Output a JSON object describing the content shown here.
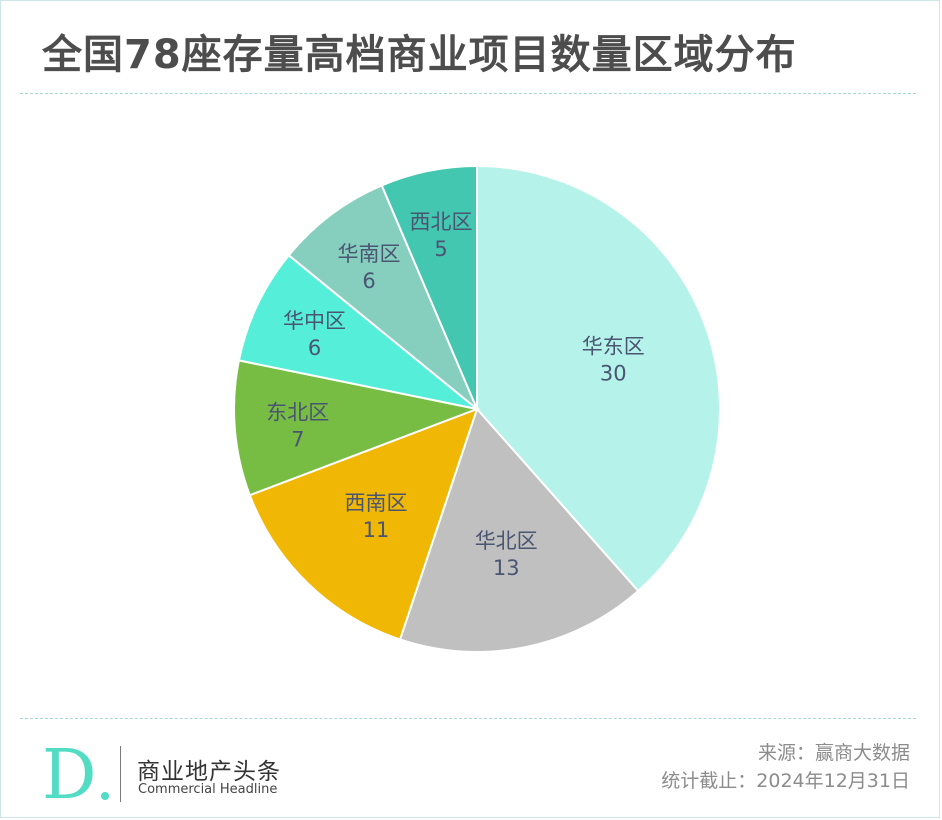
{
  "header": {
    "title": "全国78座存量高档商业项目数量区域分布"
  },
  "chart_data": {
    "type": "pie",
    "title": "全国78座存量高档商业项目数量区域分布",
    "start_angle_deg": 0,
    "direction": "clockwise",
    "slices": [
      {
        "label": "华东区",
        "value": 30,
        "color": "#b5f2ea"
      },
      {
        "label": "华北区",
        "value": 13,
        "color": "#c0c0c0"
      },
      {
        "label": "西南区",
        "value": 11,
        "color": "#f0b805"
      },
      {
        "label": "东北区",
        "value": 7,
        "color": "#77bd43"
      },
      {
        "label": "华中区",
        "value": 6,
        "color": "#55eed8"
      },
      {
        "label": "华南区",
        "value": 6,
        "color": "#86cfbf"
      },
      {
        "label": "西北区",
        "value": 5,
        "color": "#44c7b0"
      }
    ]
  },
  "footer": {
    "brand_name": "商业地产头条",
    "brand_en": "Commercial Headline",
    "source": "来源：赢商大数据",
    "cutoff": "统计截止：2024年12月31日"
  },
  "colors": {
    "logo_teal": "#52dcc4",
    "divider": "#a9d8d4"
  }
}
